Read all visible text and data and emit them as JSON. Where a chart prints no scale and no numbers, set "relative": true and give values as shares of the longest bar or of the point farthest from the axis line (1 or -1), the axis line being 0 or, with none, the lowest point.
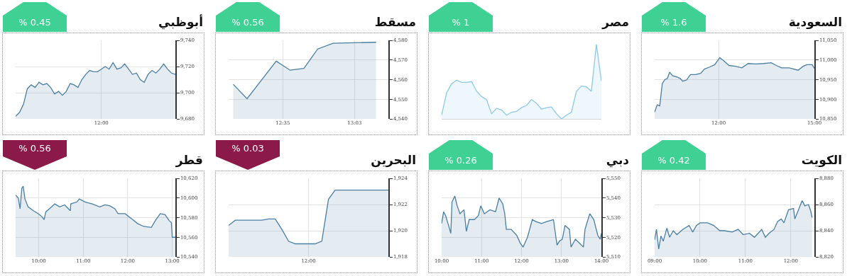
{
  "chart_data": [
    {
      "type": "area",
      "title": "أبوظبي",
      "annotations": [
        "% 0.45"
      ],
      "grid": true,
      "categories": [
        null,
        null,
        null,
        null,
        null,
        null,
        null,
        null,
        null,
        null,
        null,
        null,
        null,
        null,
        null,
        null,
        null,
        null,
        null,
        null,
        null,
        null,
        "12:00",
        null,
        null,
        null,
        null,
        null,
        null,
        null,
        null,
        null,
        null,
        null,
        null,
        null,
        null,
        null,
        null,
        null,
        null,
        null
      ],
      "ylim": [
        9680,
        9740
      ],
      "yticks": [
        {
          "value": 9680,
          "label": "9,680"
        },
        {
          "value": 9700,
          "label": "9,700"
        },
        {
          "value": 9720,
          "label": "9,720"
        },
        {
          "value": 9740,
          "label": "9,740"
        }
      ],
      "series": [
        {
          "color": "#4a7fa3",
          "values": [
            9682,
            9685,
            9691,
            9703,
            9706,
            9704,
            9708,
            9706,
            9707,
            9704,
            9699,
            9701,
            9698,
            9701,
            9707,
            9706,
            9704,
            9710,
            9714,
            9717,
            9716,
            9716,
            9718,
            9720,
            9718,
            9723,
            9718,
            9719,
            9722,
            9718,
            9714,
            9715,
            9710,
            9708,
            9714,
            9717,
            9715,
            9718,
            9722,
            9718,
            9715,
            9714
          ]
        }
      ]
    },
    {
      "type": "area",
      "title": "مسقط",
      "annotations": [
        "% 0.56"
      ],
      "grid": true,
      "xlim": [
        12.23,
        13.27
      ],
      "xticks": [
        {
          "value": 12.5833,
          "label": "12:35"
        },
        {
          "value": 13.05,
          "label": "13:03"
        }
      ],
      "ylim": [
        4540,
        4580
      ],
      "yticks": [
        {
          "value": 4540,
          "label": "4,540"
        },
        {
          "value": 4550,
          "label": "4,550"
        },
        {
          "value": 4560,
          "label": "4,560"
        },
        {
          "value": 4570,
          "label": "4,570"
        },
        {
          "value": 4580,
          "label": "4,580"
        }
      ],
      "series": [
        {
          "color": "#4a7fa3",
          "x": [
            12.26,
            12.35,
            12.54,
            12.63,
            12.72,
            12.81,
            12.91,
            13.19
          ],
          "values": [
            4557.6,
            4550.3,
            4569.4,
            4564.8,
            4565.7,
            4575.6,
            4578.5,
            4579
          ]
        }
      ]
    },
    {
      "type": "area",
      "title": "مصر",
      "annotations": [
        "% 1"
      ],
      "relative": true,
      "categories": [
        null,
        null,
        null,
        null,
        null,
        null,
        null,
        null,
        null,
        null,
        null,
        null,
        null,
        null,
        null,
        null,
        null,
        null,
        null,
        null,
        null,
        null,
        null,
        null,
        null,
        null,
        null,
        null,
        null,
        null,
        null,
        null,
        null
      ],
      "series": [
        {
          "color": "#8cc8e8",
          "values": [
            0.05,
            0.35,
            0.47,
            0.52,
            0.49,
            0.49,
            0.5,
            0.37,
            0.3,
            0.26,
            0.07,
            0.14,
            0.12,
            0.05,
            0.09,
            0.1,
            0.15,
            0.18,
            0.26,
            0.21,
            0.13,
            0.15,
            0.16,
            0.07,
            0,
            0.05,
            0.09,
            0.37,
            0.44,
            0.43,
            0.37,
            1,
            0.51
          ]
        }
      ]
    },
    {
      "type": "area",
      "title": "السعودية",
      "annotations": [
        "% 1.6"
      ],
      "grid": true,
      "xlim": [
        10,
        15
      ],
      "xticks": [
        {
          "value": 12,
          "label": "12:00"
        },
        {
          "value": 15,
          "label": "15:00"
        }
      ],
      "ylim": [
        10850,
        11050
      ],
      "yticks": [
        {
          "value": 10850,
          "label": "10,850"
        },
        {
          "value": 10900,
          "label": "10,900"
        },
        {
          "value": 10950,
          "label": "10,950"
        },
        {
          "value": 11000,
          "label": "11,000"
        },
        {
          "value": 11050,
          "label": "11,050"
        }
      ],
      "series": [
        {
          "color": "#4a7fa3",
          "x": [
            10,
            10.08,
            10.16,
            10.24,
            10.32,
            10.4,
            10.47,
            10.56,
            10.72,
            10.8,
            10.88,
            11,
            11.12,
            11.28,
            11.44,
            11.56,
            11.72,
            11.88,
            12.04,
            12.16,
            12.33,
            12.53,
            12.73,
            12.93,
            13.17,
            13.41,
            13.65,
            13.81,
            13.97,
            14.21,
            14.49,
            14.65,
            14.77,
            14.93,
            15
          ],
          "values": [
            10867,
            10886,
            10883,
            10940,
            10950,
            10953,
            10969,
            10960,
            10956,
            10953,
            10946,
            10949,
            10963,
            10963,
            10966,
            10977,
            10982,
            10988,
            11006,
            10998,
            10986,
            10984,
            10980,
            10991,
            10990,
            10991,
            10993,
            10986,
            10980,
            10980,
            10974,
            10984,
            10988,
            10988,
            10979
          ]
        }
      ]
    },
    {
      "type": "area",
      "title": "قطر",
      "annotations": [
        "% 0.56"
      ],
      "grid": true,
      "xlim": [
        9.48,
        13.07
      ],
      "xticks": [
        {
          "value": 10,
          "label": "10:00"
        },
        {
          "value": 11,
          "label": "11:00"
        },
        {
          "value": 12,
          "label": "12:00"
        },
        {
          "value": 13,
          "label": "13:00"
        }
      ],
      "ylim": [
        10540,
        10620
      ],
      "yticks": [
        {
          "value": 10540,
          "label": "10,540"
        },
        {
          "value": 10560,
          "label": "10,560"
        },
        {
          "value": 10580,
          "label": "10,580"
        },
        {
          "value": 10600,
          "label": "10,600"
        },
        {
          "value": 10620,
          "label": "10,620"
        }
      ],
      "series": [
        {
          "color": "#4a7fa3",
          "x": [
            9.48,
            9.54,
            9.58,
            9.62,
            9.65,
            9.69,
            9.76,
            9.88,
            9.99,
            10.07,
            10.12,
            10.16,
            10.24,
            10.36,
            10.47,
            10.58,
            10.71,
            10.72,
            10.86,
            10.91,
            11.04,
            11.2,
            11.37,
            11.49,
            11.6,
            11.71,
            11.78,
            11.94,
            12.11,
            12.22,
            12.36,
            12.53,
            12.62,
            12.73,
            12.84,
            12.93,
            12.98,
            13,
            13.07
          ],
          "values": [
            10603,
            10600,
            10589,
            10610,
            10612,
            10599,
            10591,
            10587,
            10584,
            10581,
            10578,
            10586,
            10589,
            10594,
            10591,
            10593,
            10587,
            10594,
            10596,
            10599,
            10596,
            10594,
            10591,
            10593,
            10592,
            10589,
            10584,
            10584,
            10578,
            10574,
            10571,
            10570,
            10577,
            10584,
            10583,
            10577,
            10575,
            10560,
            10560
          ]
        }
      ]
    },
    {
      "type": "area",
      "title": "البحرين",
      "annotations": [
        "% 0.03"
      ],
      "grid": true,
      "categories": [
        null,
        null,
        null,
        null,
        null,
        null,
        null,
        null,
        null,
        null,
        null,
        null,
        "12:00",
        null,
        null,
        null,
        null,
        null,
        null,
        null,
        null,
        null,
        null,
        null,
        null
      ],
      "ylim": [
        1918,
        1924
      ],
      "yticks": [
        {
          "value": 1918,
          "label": "1,918"
        },
        {
          "value": 1920,
          "label": "1,920"
        },
        {
          "value": 1922,
          "label": "1,922"
        },
        {
          "value": 1924,
          "label": "1,924"
        }
      ],
      "series": [
        {
          "color": "#4a7fa3",
          "values": [
            1920.4,
            1920.8,
            1920.8,
            1920.8,
            1920.8,
            1920.8,
            1920.9,
            1920.9,
            1920.1,
            1919.2,
            1919.0,
            1919.0,
            1919.0,
            1919.0,
            1919.2,
            1922.4,
            1923.1,
            1923.1,
            1923.1,
            1923.1,
            1923.1,
            1923.1,
            1923.1,
            1923.1,
            1923.1
          ]
        }
      ]
    },
    {
      "type": "area",
      "title": "دبي",
      "annotations": [
        "% 0.26"
      ],
      "grid": true,
      "xlim": [
        10,
        14
      ],
      "xticks": [
        {
          "value": 10,
          "label": "10:00"
        },
        {
          "value": 11,
          "label": "11:00"
        },
        {
          "value": 12,
          "label": "12:00"
        },
        {
          "value": 13,
          "label": "13:00"
        },
        {
          "value": 14,
          "label": "14:00"
        }
      ],
      "ylim": [
        5510,
        5550
      ],
      "yticks": [
        {
          "value": 5510,
          "label": "5,510"
        },
        {
          "value": 5520,
          "label": "5,520"
        },
        {
          "value": 5530,
          "label": "5,530"
        },
        {
          "value": 5540,
          "label": "5,540"
        },
        {
          "value": 5550,
          "label": "5,550"
        }
      ],
      "series": [
        {
          "color": "#4a7fa3",
          "x": [
            10,
            10.05,
            10.1,
            10.16,
            10.23,
            10.26,
            10.33,
            10.39,
            10.46,
            10.56,
            10.62,
            10.69,
            10.82,
            10.92,
            10.98,
            11.07,
            11.21,
            11.35,
            11.44,
            11.53,
            11.58,
            11.62,
            11.74,
            11.88,
            11.97,
            12.04,
            12.15,
            12.27,
            12.36,
            12.5,
            12.63,
            12.8,
            12.89,
            12.95,
            13.02,
            13.09,
            13.2,
            13.24,
            13.35,
            13.45,
            13.55,
            13.59,
            13.71,
            13.81,
            13.91,
            13.97,
            14
          ],
          "values": [
            5527,
            5533,
            5531,
            5527,
            5522,
            5538,
            5541,
            5536,
            5532,
            5534,
            5523,
            5529,
            5529,
            5531,
            5536,
            5532,
            5534,
            5533,
            5540,
            5537,
            5532,
            5524,
            5524,
            5521,
            5517,
            5515,
            5520,
            5529,
            5528,
            5527,
            5528,
            5529,
            5516,
            5518,
            5519,
            5526,
            5524,
            5515,
            5519,
            5517,
            5515,
            5524,
            5532,
            5529,
            5521,
            5519,
            5522
          ]
        }
      ]
    },
    {
      "type": "area",
      "title": "الكويت",
      "annotations": [
        "% 0.42"
      ],
      "grid": true,
      "xlim": [
        9,
        12.52
      ],
      "xticks": [
        {
          "value": 9,
          "label": "09:00"
        },
        {
          "value": 10,
          "label": "10:00"
        },
        {
          "value": 11,
          "label": "11:00"
        },
        {
          "value": 12,
          "label": "12:00"
        }
      ],
      "ylim": [
        8820,
        8880
      ],
      "yticks": [
        {
          "value": 8820,
          "label": "8,820"
        },
        {
          "value": 8840,
          "label": "8,840"
        },
        {
          "value": 8860,
          "label": "8,860"
        },
        {
          "value": 8880,
          "label": "8,880"
        }
      ],
      "series": [
        {
          "color": "#4a7fa3",
          "x": [
            9,
            9.04,
            9.09,
            9.14,
            9.19,
            9.27,
            9.33,
            9.41,
            9.49,
            9.62,
            9.76,
            9.84,
            9.92,
            10,
            10.17,
            10.3,
            10.44,
            10.54,
            10.71,
            10.84,
            10.95,
            11.09,
            11.2,
            11.28,
            11.36,
            11.44,
            11.52,
            11.63,
            11.71,
            11.79,
            11.85,
            11.95,
            12.06,
            12.09,
            12.17,
            12.25,
            12.31,
            12.39,
            12.44,
            12.47
          ],
          "values": [
            8833,
            8841,
            8826,
            8836,
            8832,
            8842,
            8835,
            8840,
            8837,
            8841,
            8844,
            8839,
            8844,
            8846,
            8846,
            8844,
            8840,
            8840,
            8839,
            8841,
            8837,
            8838,
            8835,
            8838,
            8841,
            8835,
            8838,
            8841,
            8847,
            8849,
            8846,
            8856,
            8857,
            8849,
            8856,
            8863,
            8859,
            8860,
            8855,
            8850
          ]
        }
      ]
    }
  ]
}
